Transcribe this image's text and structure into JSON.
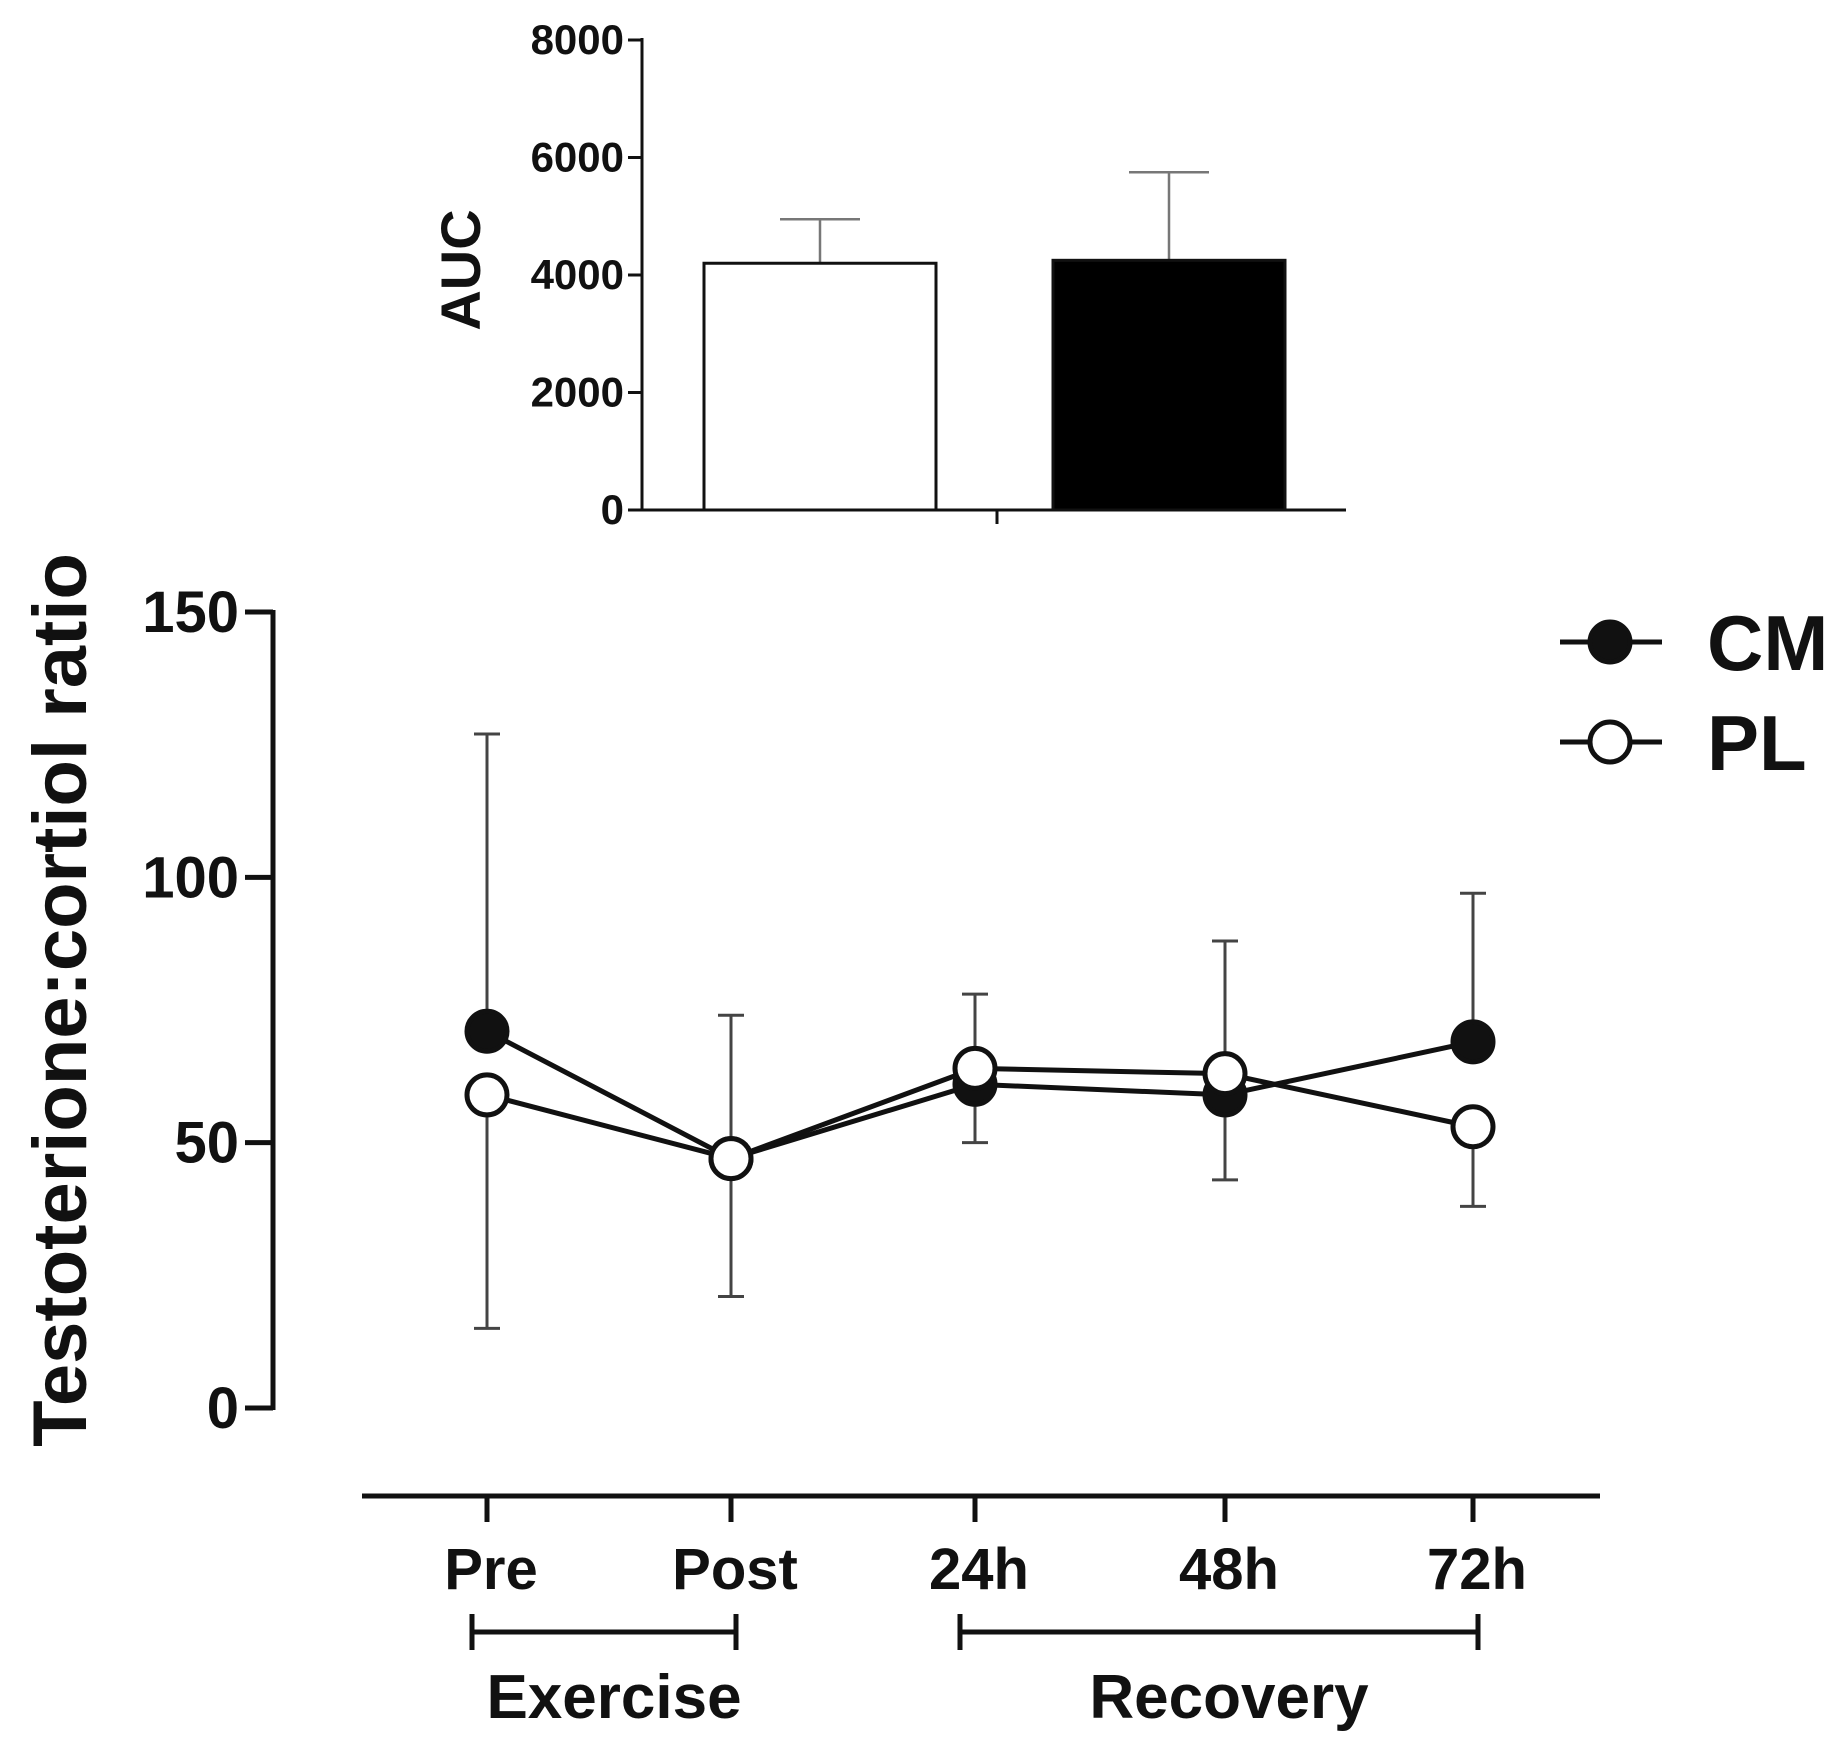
{
  "chart_data": [
    {
      "type": "bar",
      "ylabel": "AUC",
      "ylim": [
        0,
        8000
      ],
      "yticks": [
        0,
        2000,
        4000,
        6000,
        8000
      ],
      "categories": [
        "PL",
        "CM"
      ],
      "values": [
        4200,
        4250
      ],
      "errors": [
        750,
        1500
      ],
      "colors": [
        "#ffffff",
        "#000000"
      ]
    },
    {
      "type": "line",
      "ylabel": "Testoterione:cortiol ratio",
      "ylim": [
        0,
        150
      ],
      "yticks": [
        0,
        50,
        100,
        150
      ],
      "categories": [
        "Pre",
        "Post",
        "24h",
        "48h",
        "72h"
      ],
      "series": [
        {
          "name": "CM",
          "marker": "filled",
          "values": [
            71,
            47,
            61,
            59,
            69
          ],
          "errors": [
            56,
            27,
            17,
            29,
            28
          ]
        },
        {
          "name": "PL",
          "marker": "open",
          "values": [
            59,
            47,
            64,
            63,
            53
          ],
          "errors": [
            44,
            26,
            14,
            20,
            15
          ]
        }
      ],
      "groups": [
        {
          "label": "Exercise",
          "from": "Pre",
          "to": "Post"
        },
        {
          "label": "Recovery",
          "from": "24h",
          "to": "72h"
        }
      ],
      "legend_position": "top-right"
    }
  ]
}
